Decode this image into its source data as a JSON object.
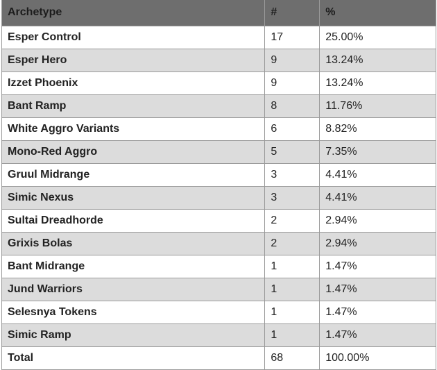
{
  "table": {
    "headers": [
      "Archetype",
      "#",
      "%"
    ],
    "rows": [
      {
        "archetype": "Esper Control",
        "count": "17",
        "percent": "25.00%"
      },
      {
        "archetype": "Esper Hero",
        "count": "9",
        "percent": "13.24%"
      },
      {
        "archetype": "Izzet Phoenix",
        "count": "9",
        "percent": "13.24%"
      },
      {
        "archetype": "Bant Ramp",
        "count": "8",
        "percent": "11.76%"
      },
      {
        "archetype": "White Aggro Variants",
        "count": "6",
        "percent": "8.82%"
      },
      {
        "archetype": "Mono-Red Aggro",
        "count": "5",
        "percent": "7.35%"
      },
      {
        "archetype": "Gruul Midrange",
        "count": "3",
        "percent": "4.41%"
      },
      {
        "archetype": "Simic Nexus",
        "count": "3",
        "percent": "4.41%"
      },
      {
        "archetype": "Sultai Dreadhorde",
        "count": "2",
        "percent": "2.94%"
      },
      {
        "archetype": "Grixis Bolas",
        "count": "2",
        "percent": "2.94%"
      },
      {
        "archetype": "Bant Midrange",
        "count": "1",
        "percent": "1.47%"
      },
      {
        "archetype": "Jund Warriors",
        "count": "1",
        "percent": "1.47%"
      },
      {
        "archetype": "Selesnya Tokens",
        "count": "1",
        "percent": "1.47%"
      },
      {
        "archetype": "Simic Ramp",
        "count": "1",
        "percent": "1.47%"
      }
    ],
    "total": {
      "label": "Total",
      "count": "68",
      "percent": "100.00%"
    }
  },
  "colors": {
    "header_bg": "#6e6e6e",
    "stripe_bg": "#dcdcdc",
    "row_bg": "#ffffff",
    "border": "#9a9a9a"
  }
}
